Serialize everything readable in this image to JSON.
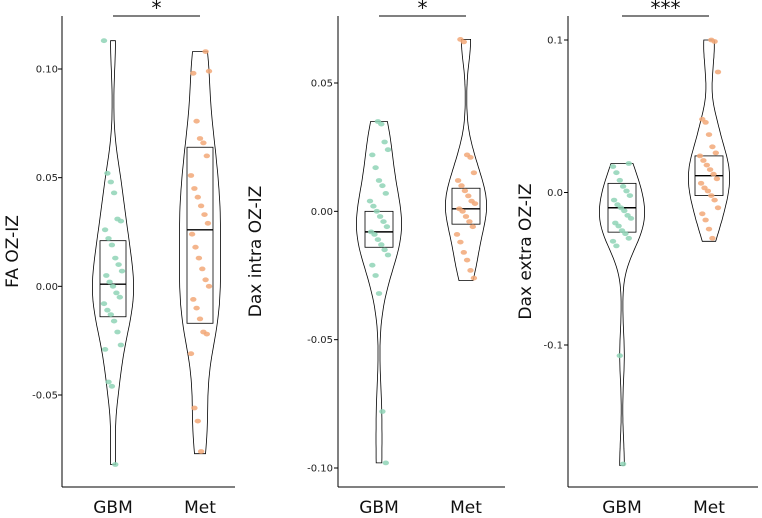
{
  "colors": {
    "GBM": "#8fd3b6",
    "Met": "#f2a878"
  },
  "chart_data": [
    {
      "type": "violin",
      "ylabel": "FA OZ-IZ",
      "categories": [
        "GBM",
        "Met"
      ],
      "ylim": [
        -0.083,
        0.118
      ],
      "yticks": [
        -0.05,
        0.0,
        0.05,
        0.1
      ],
      "ytick_labels": [
        "-0.05",
        "0.00",
        "0.05",
        "0.10"
      ],
      "significance": "*",
      "series": [
        {
          "name": "GBM",
          "box": {
            "q1": -0.014,
            "median": 0.001,
            "q3": 0.021
          },
          "violin_range": [
            -0.082,
            0.113
          ],
          "points": [
            0.113,
            0.052,
            0.048,
            0.043,
            0.031,
            0.03,
            0.026,
            0.022,
            0.019,
            0.013,
            0.01,
            0.007,
            0.005,
            0.002,
            0.0,
            -0.003,
            -0.005,
            -0.008,
            -0.011,
            -0.013,
            -0.016,
            -0.021,
            -0.027,
            -0.029,
            -0.044,
            -0.046,
            -0.082
          ]
        },
        {
          "name": "Met",
          "box": {
            "q1": -0.017,
            "median": 0.026,
            "q3": 0.064
          },
          "violin_range": [
            -0.077,
            0.108
          ],
          "points": [
            0.108,
            0.099,
            0.098,
            0.076,
            0.068,
            0.066,
            0.06,
            0.051,
            0.045,
            0.041,
            0.037,
            0.033,
            0.029,
            0.024,
            0.018,
            0.013,
            0.008,
            0.003,
            0.0,
            -0.006,
            -0.01,
            -0.015,
            -0.021,
            -0.022,
            -0.031,
            -0.056,
            -0.062,
            -0.076
          ]
        }
      ]
    },
    {
      "type": "violin",
      "ylabel": "Dax intra OZ-IZ",
      "categories": [
        "GBM",
        "Met"
      ],
      "ylim": [
        -0.1,
        0.075
      ],
      "yticks": [
        -0.1,
        -0.05,
        0.0,
        0.05
      ],
      "ytick_labels": [
        "-0.10",
        "-0.05",
        "0.00",
        "0.05"
      ],
      "significance": "*",
      "series": [
        {
          "name": "GBM",
          "box": {
            "q1": -0.014,
            "median": -0.008,
            "q3": 0.0
          },
          "violin_range": [
            -0.098,
            0.035
          ],
          "points": [
            0.035,
            0.034,
            0.027,
            0.024,
            0.022,
            0.017,
            0.012,
            0.01,
            0.007,
            0.004,
            0.002,
            0.0,
            -0.002,
            -0.004,
            -0.006,
            -0.008,
            -0.009,
            -0.011,
            -0.013,
            -0.015,
            -0.017,
            -0.021,
            -0.025,
            -0.032,
            -0.078,
            -0.098
          ]
        },
        {
          "name": "Met",
          "box": {
            "q1": -0.005,
            "median": 0.001,
            "q3": 0.009
          },
          "violin_range": [
            -0.027,
            0.067
          ],
          "points": [
            0.067,
            0.066,
            0.022,
            0.021,
            0.015,
            0.012,
            0.01,
            0.008,
            0.006,
            0.004,
            0.003,
            0.001,
            0.0,
            -0.002,
            -0.004,
            -0.006,
            -0.009,
            -0.012,
            -0.016,
            -0.019,
            -0.023,
            -0.026
          ]
        }
      ]
    },
    {
      "type": "violin",
      "ylabel": "Dax extra OZ-IZ",
      "categories": [
        "GBM",
        "Met"
      ],
      "ylim": [
        -0.18,
        0.113
      ],
      "yticks": [
        -0.1,
        0.0,
        0.1
      ],
      "ytick_labels": [
        "-0.1",
        "0.0",
        "0.1"
      ],
      "significance": "***",
      "series": [
        {
          "name": "GBM",
          "box": {
            "q1": -0.026,
            "median": -0.01,
            "q3": 0.006
          },
          "violin_range": [
            -0.179,
            0.019
          ],
          "points": [
            0.019,
            0.017,
            0.013,
            0.008,
            0.004,
            0.001,
            -0.002,
            -0.005,
            -0.008,
            -0.01,
            -0.012,
            -0.015,
            -0.017,
            -0.02,
            -0.022,
            -0.025,
            -0.027,
            -0.03,
            -0.032,
            -0.035,
            -0.107,
            -0.178
          ]
        },
        {
          "name": "Met",
          "box": {
            "q1": -0.002,
            "median": 0.011,
            "q3": 0.024
          },
          "violin_range": [
            -0.032,
            0.1
          ],
          "points": [
            0.1,
            0.099,
            0.079,
            0.048,
            0.046,
            0.038,
            0.03,
            0.026,
            0.024,
            0.021,
            0.018,
            0.015,
            0.012,
            0.009,
            0.006,
            0.003,
            0.001,
            -0.002,
            -0.005,
            -0.01,
            -0.014,
            -0.018,
            -0.024,
            -0.03
          ]
        }
      ]
    }
  ]
}
